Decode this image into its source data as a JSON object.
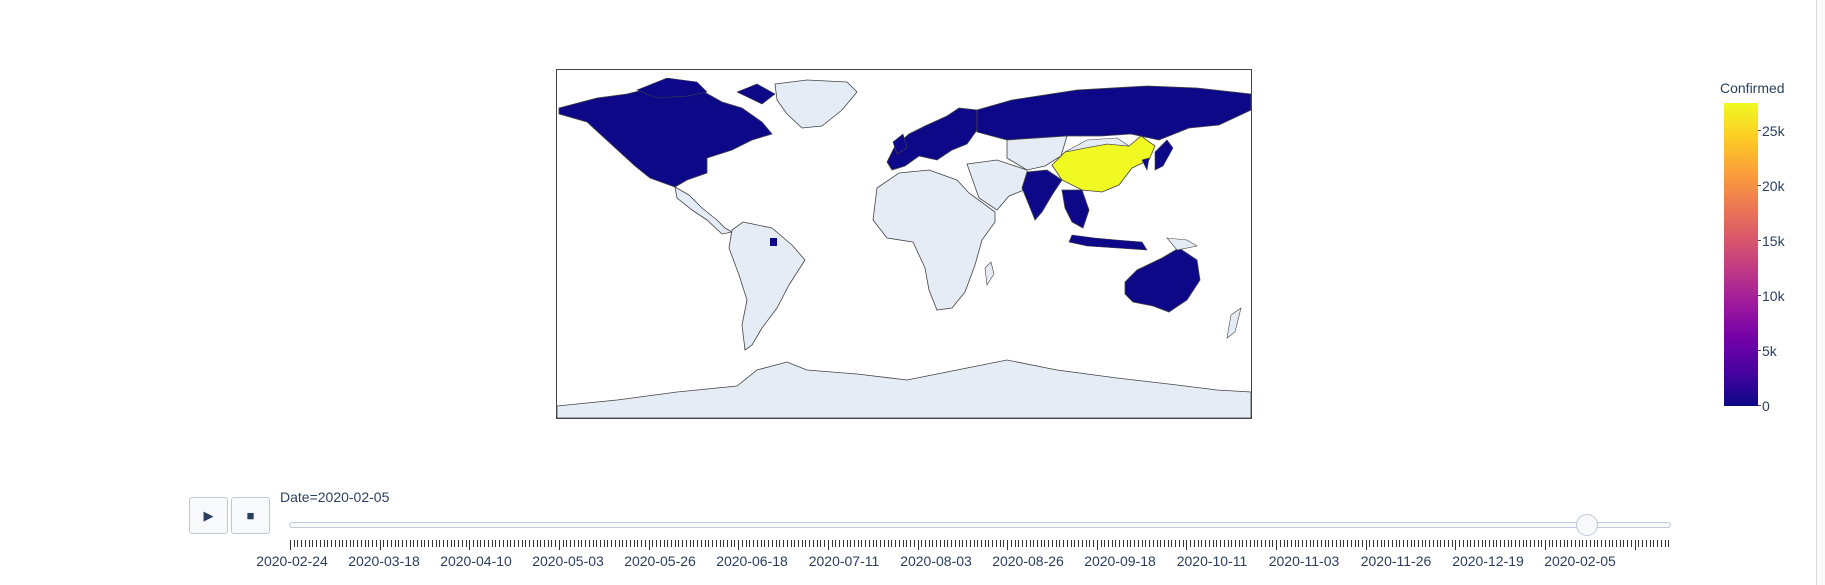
{
  "colors": {
    "land": "#e5ecf6",
    "low": "#0d0887",
    "high": "#f0f921",
    "border": "#444444",
    "ui_text": "#2a3f5f"
  },
  "map": {
    "projection": "equirectangular",
    "highlighted": [
      "China"
    ]
  },
  "colorbar": {
    "title": "Confirmed",
    "ticks": [
      "25k",
      "20k",
      "15k",
      "10k",
      "5k",
      "0"
    ],
    "tick_values": [
      25000,
      20000,
      15000,
      10000,
      5000,
      0
    ],
    "max": 27500
  },
  "controls": {
    "play_icon": "▶",
    "stop_icon": "■"
  },
  "slider": {
    "label": "Date=2020-02-05",
    "current": "2020-02-05",
    "position_fraction": 0.939,
    "step_count": 370,
    "tick_labels": [
      "2020-02-24",
      "2020-03-18",
      "2020-04-10",
      "2020-05-03",
      "2020-05-26",
      "2020-06-18",
      "2020-07-11",
      "2020-08-03",
      "2020-08-26",
      "2020-09-18",
      "2020-10-11",
      "2020-11-03",
      "2020-11-26",
      "2020-12-19",
      "2020-02-05"
    ]
  }
}
